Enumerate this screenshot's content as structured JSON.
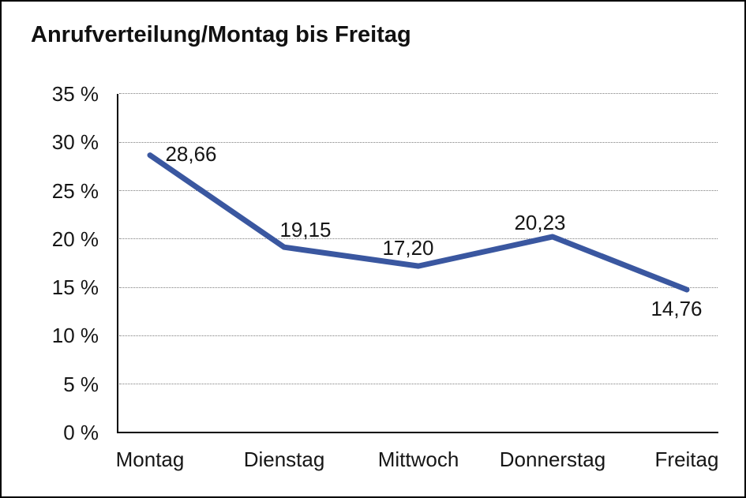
{
  "window": {
    "background": "#ffffff",
    "border_color": "#000000"
  },
  "chart_data": {
    "type": "line",
    "title": "Anrufverteilung/Montag bis Freitag",
    "categories": [
      "Montag",
      "Dienstag",
      "Mittwoch",
      "Donnerstag",
      "Freitag"
    ],
    "values": [
      28.66,
      19.15,
      17.2,
      20.23,
      14.76
    ],
    "value_labels": [
      "28,66",
      "19,15",
      "17,20",
      "20,23",
      "14,76"
    ],
    "yticks": [
      35,
      30,
      25,
      20,
      15,
      10,
      5,
      0
    ],
    "ytick_labels": [
      "35 %",
      "30 %",
      "25 %",
      "20 %",
      "15 %",
      "10 %",
      "5 %",
      "0 %"
    ],
    "ylim": [
      0,
      35
    ],
    "xlabel": "",
    "ylabel": "",
    "legend": "none",
    "grid": "horizontal-dotted",
    "line_color": "#3A57A0",
    "text_color": "#161616",
    "gridline_color": "#7e7e7e"
  }
}
